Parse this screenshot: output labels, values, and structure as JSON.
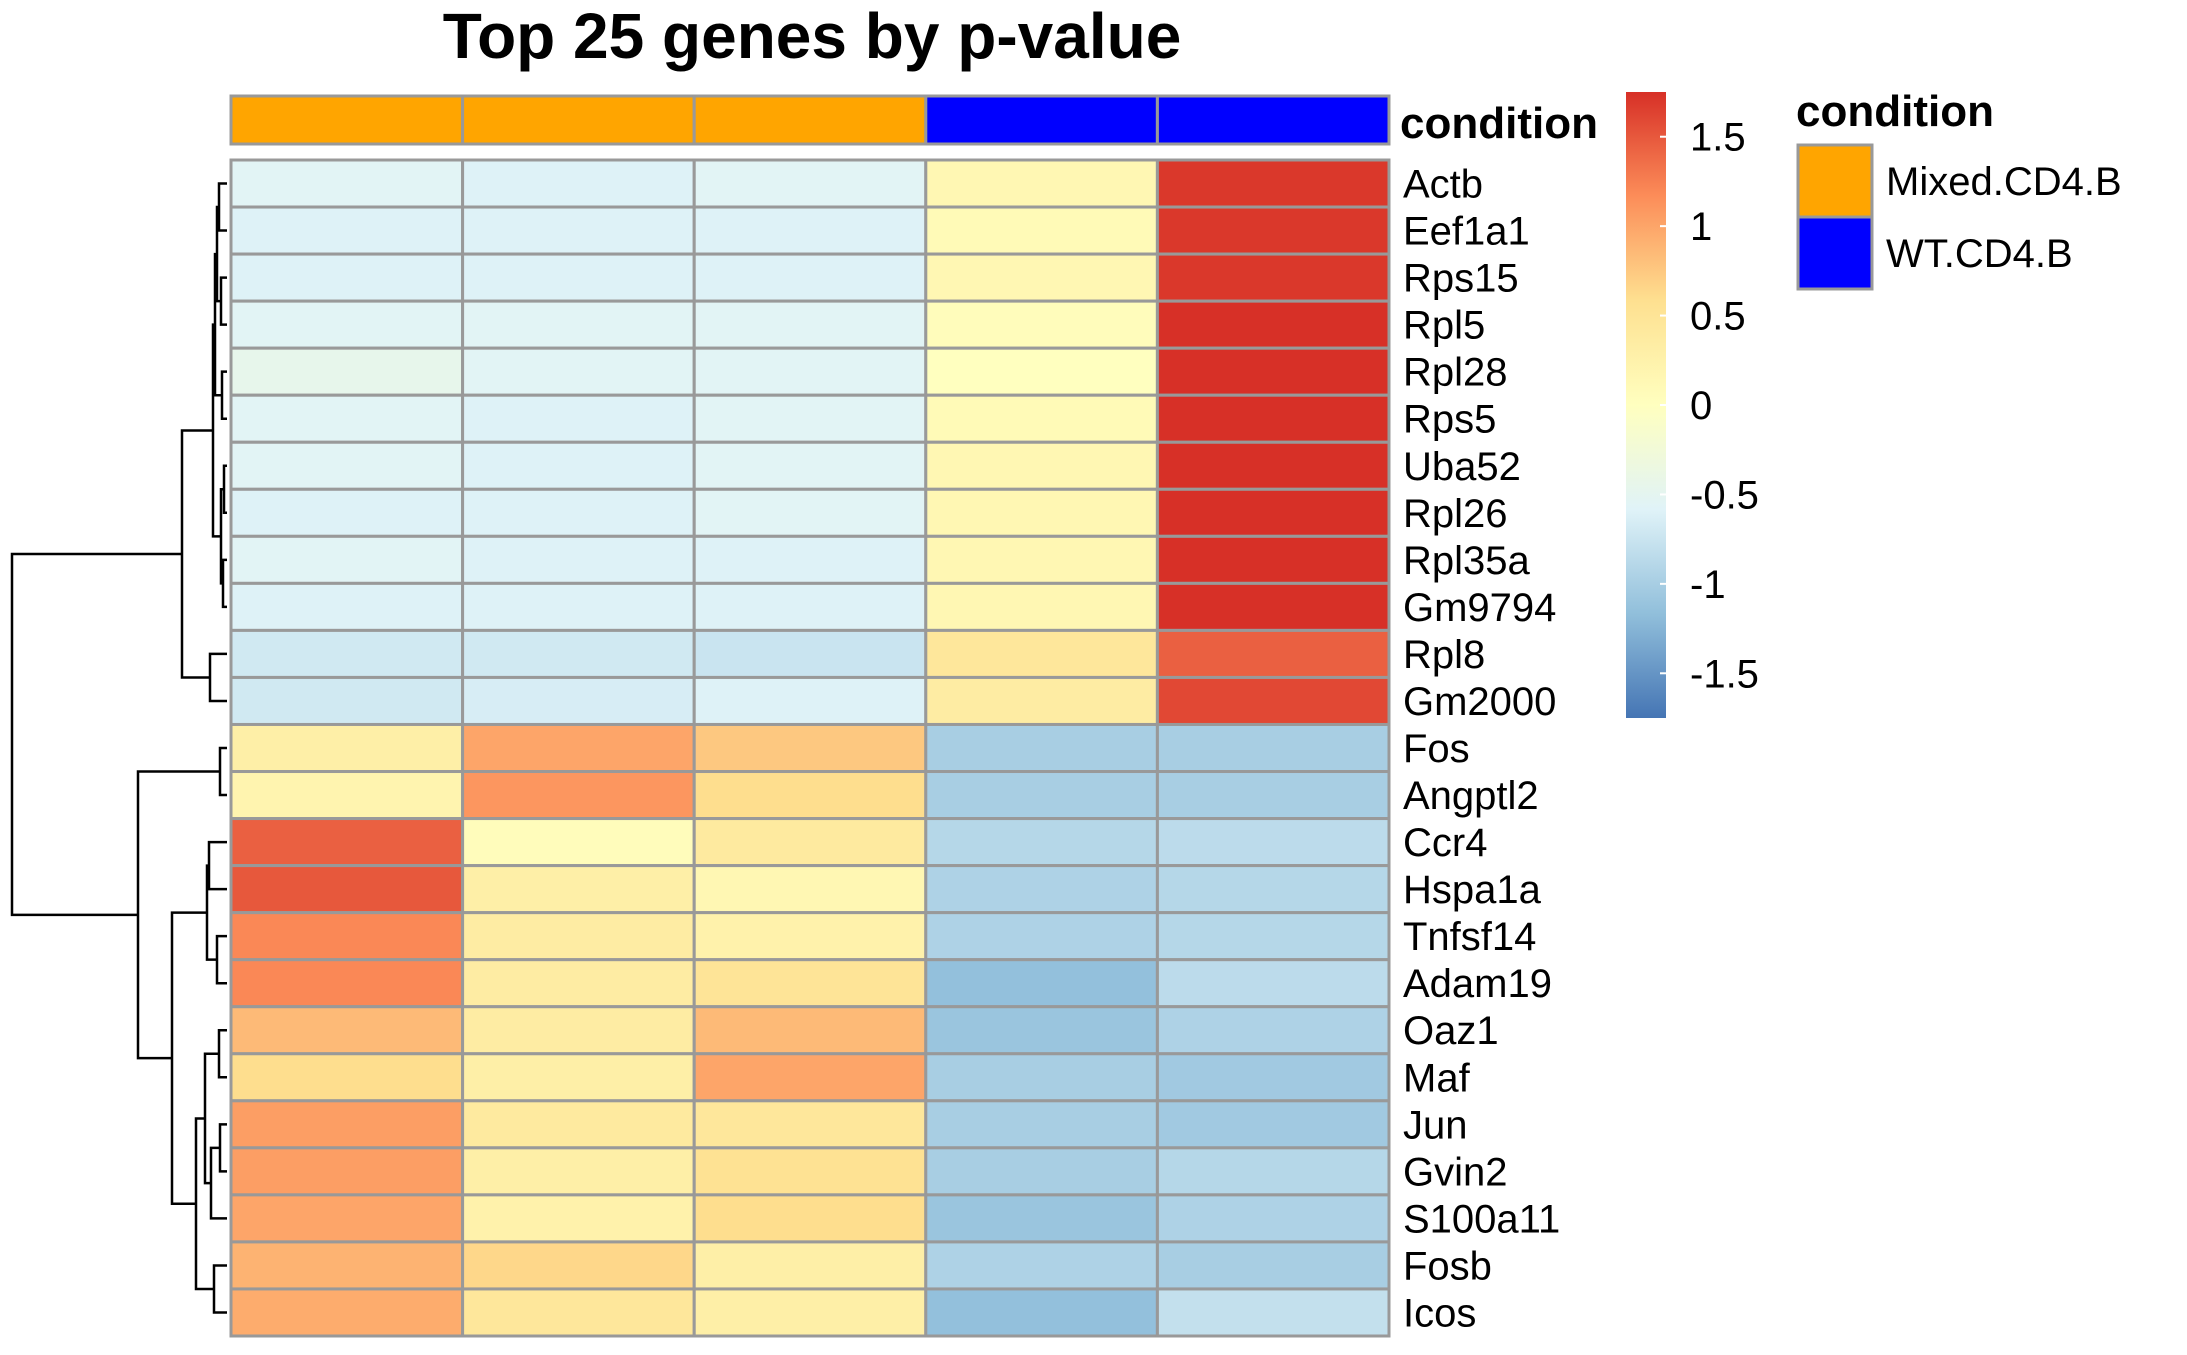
{
  "chart_data": {
    "type": "heatmap",
    "title": "Top 25 genes by p-value",
    "rows": [
      "Actb",
      "Eef1a1",
      "Rps15",
      "Rpl5",
      "Rpl28",
      "Rps5",
      "Uba52",
      "Rpl26",
      "Rpl35a",
      "Gm9794",
      "Rpl8",
      "Gm2000",
      "Fos",
      "Angptl2",
      "Ccr4",
      "Hspa1a",
      "Tnfsf14",
      "Adam19",
      "Oaz1",
      "Maf",
      "Jun",
      "Gvin2",
      "S100a11",
      "Fosb",
      "Icos"
    ],
    "columns": [
      "",
      "",
      "",
      "",
      ""
    ],
    "values": [
      [
        -0.55,
        -0.6,
        -0.55,
        0.15,
        1.7
      ],
      [
        -0.6,
        -0.6,
        -0.6,
        0.1,
        1.7
      ],
      [
        -0.6,
        -0.6,
        -0.6,
        0.15,
        1.7
      ],
      [
        -0.55,
        -0.55,
        -0.55,
        0.05,
        1.75
      ],
      [
        -0.45,
        -0.55,
        -0.55,
        0.0,
        1.75
      ],
      [
        -0.55,
        -0.6,
        -0.55,
        0.1,
        1.75
      ],
      [
        -0.55,
        -0.6,
        -0.55,
        0.15,
        1.75
      ],
      [
        -0.6,
        -0.6,
        -0.55,
        0.15,
        1.75
      ],
      [
        -0.55,
        -0.6,
        -0.6,
        0.15,
        1.75
      ],
      [
        -0.6,
        -0.6,
        -0.6,
        0.15,
        1.75
      ],
      [
        -0.7,
        -0.7,
        -0.75,
        0.45,
        1.45
      ],
      [
        -0.7,
        -0.65,
        -0.6,
        0.35,
        1.6
      ],
      [
        0.3,
        1.0,
        0.75,
        -1.0,
        -1.0
      ],
      [
        0.2,
        1.1,
        0.6,
        -1.0,
        -1.0
      ],
      [
        1.45,
        0.05,
        0.4,
        -0.9,
        -0.85
      ],
      [
        1.5,
        0.3,
        0.15,
        -0.95,
        -0.9
      ],
      [
        1.2,
        0.35,
        0.25,
        -0.95,
        -0.9
      ],
      [
        1.2,
        0.35,
        0.5,
        -1.15,
        -0.85
      ],
      [
        0.85,
        0.35,
        0.85,
        -1.1,
        -0.95
      ],
      [
        0.6,
        0.3,
        1.0,
        -1.0,
        -1.05
      ],
      [
        1.05,
        0.4,
        0.45,
        -1.0,
        -1.05
      ],
      [
        1.05,
        0.3,
        0.55,
        -1.0,
        -0.9
      ],
      [
        1.0,
        0.25,
        0.6,
        -1.1,
        -0.95
      ],
      [
        0.9,
        0.65,
        0.3,
        -0.95,
        -1.0
      ],
      [
        0.95,
        0.45,
        0.3,
        -1.15,
        -0.8
      ]
    ],
    "annotation": {
      "name": "condition",
      "column_groups": [
        "Mixed.CD4.B",
        "Mixed.CD4.B",
        "Mixed.CD4.B",
        "WT.CD4.B",
        "WT.CD4.B"
      ],
      "legend": [
        {
          "label": "Mixed.CD4.B",
          "color": "#FFA500"
        },
        {
          "label": "WT.CD4.B",
          "color": "#0000FF"
        }
      ]
    },
    "color_scale": {
      "ticks": [
        "1.5",
        "1",
        "0.5",
        "0",
        "-0.5",
        "-1",
        "-1.5"
      ],
      "tick_values": [
        1.5,
        1,
        0.5,
        0,
        -0.5,
        -1,
        -1.5
      ],
      "range": [
        -1.75,
        1.75
      ],
      "colors": [
        "#4575B4",
        "#91BFDB",
        "#E0F3F8",
        "#FFFFBF",
        "#FEE090",
        "#FC8D59",
        "#D73027"
      ]
    },
    "grid": true,
    "legend_position": "right"
  }
}
